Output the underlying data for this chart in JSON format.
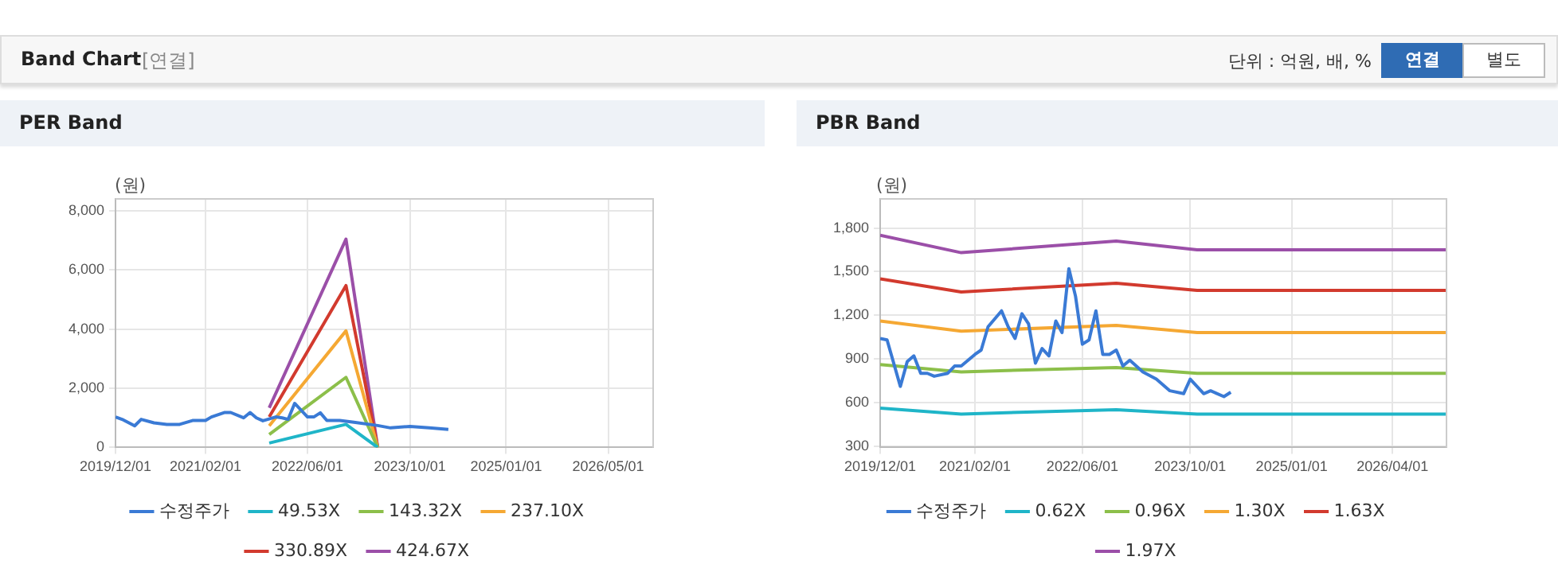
{
  "chart_data": [
    {
      "type": "line",
      "title": "PER Band",
      "ylabel": "(원)",
      "annotations": [
        "Band Chart",
        "[연결]",
        "단위 : 억원, 배, %",
        "연결",
        "별도"
      ],
      "xlim": [
        "2019-12-01",
        "2026-12-01"
      ],
      "xticks": [
        {
          "value": "2019-12-01",
          "label": "2019/12/01"
        },
        {
          "value": "2021-02-01",
          "label": "2021/02/01"
        },
        {
          "value": "2022-06-01",
          "label": "2022/06/01"
        },
        {
          "value": "2023-10-01",
          "label": "2023/10/01"
        },
        {
          "value": "2025-01-01",
          "label": "2025/01/01"
        },
        {
          "value": "2026-05-01",
          "label": "2026/05/01"
        }
      ],
      "ylim": [
        0,
        8400
      ],
      "yticks": [
        0,
        {
          "value": 2000,
          "label": "2,000"
        },
        {
          "value": 4000,
          "label": "4,000"
        },
        {
          "value": 6000,
          "label": "6,000"
        },
        {
          "value": 8000,
          "label": "8,000"
        }
      ],
      "grid": true,
      "legend": "bottom",
      "marker": "none",
      "line_style": "solid",
      "series": [
        {
          "name": "수정주가",
          "color": "#3a7ad5",
          "x": [
            "2019-12",
            "2020-01",
            "2020-03",
            "2020-04",
            "2020-06",
            "2020-08",
            "2020-10",
            "2020-12",
            "2021-02",
            "2021-03",
            "2021-05",
            "2021-06",
            "2021-08",
            "2021-09",
            "2021-10",
            "2021-11",
            "2022-01",
            "2022-02",
            "2022-03",
            "2022-04",
            "2022-06",
            "2022-07",
            "2022-08",
            "2022-09",
            "2022-11",
            "2023-01",
            "2023-05",
            "2023-07",
            "2023-10",
            "2024-01",
            "2024-04"
          ],
          "values": [
            1030,
            950,
            730,
            950,
            830,
            780,
            780,
            910,
            910,
            1030,
            1180,
            1180,
            1000,
            1180,
            1000,
            900,
            1030,
            1000,
            950,
            1490,
            1030,
            1030,
            1170,
            910,
            910,
            860,
            740,
            660,
            710,
            660,
            610
          ]
        },
        {
          "name": "49.53X",
          "color": "#1fb5c8",
          "x": [
            "2021-12",
            "2022-12",
            "2023-05"
          ],
          "values": [
            150,
            780,
            0
          ]
        },
        {
          "name": "143.32X",
          "color": "#8cbf4a",
          "x": [
            "2021-12",
            "2022-12",
            "2023-05"
          ],
          "values": [
            440,
            2370,
            0
          ]
        },
        {
          "name": "237.10X",
          "color": "#f5a833",
          "x": [
            "2021-12",
            "2022-12",
            "2023-05"
          ],
          "values": [
            730,
            3940,
            0
          ]
        },
        {
          "name": "330.89X",
          "color": "#d23a2e",
          "x": [
            "2021-12",
            "2022-12",
            "2023-05"
          ],
          "values": [
            1030,
            5470,
            0
          ]
        },
        {
          "name": "424.67X",
          "color": "#9b4fa8",
          "x": [
            "2021-12",
            "2022-12",
            "2023-05"
          ],
          "values": [
            1340,
            7040,
            0
          ]
        }
      ]
    },
    {
      "type": "line",
      "title": "PBR Band",
      "ylabel": "(원)",
      "xlim": [
        "2019-12-01",
        "2026-12-01"
      ],
      "xticks": [
        {
          "value": "2019-12-01",
          "label": "2019/12/01"
        },
        {
          "value": "2021-02-01",
          "label": "2021/02/01"
        },
        {
          "value": "2022-06-01",
          "label": "2022/06/01"
        },
        {
          "value": "2023-10-01",
          "label": "2023/10/01"
        },
        {
          "value": "2025-01-01",
          "label": "2025/01/01"
        },
        {
          "value": "2026-04-01",
          "label": "2026/04/01"
        }
      ],
      "ylim": [
        290,
        2000
      ],
      "yticks": [
        300,
        600,
        900,
        {
          "value": 1200,
          "label": "1,200"
        },
        {
          "value": 1500,
          "label": "1,500"
        },
        {
          "value": 1800,
          "label": "1,800"
        }
      ],
      "grid": true,
      "legend": "bottom",
      "marker": "none",
      "line_style": "solid",
      "series": [
        {
          "name": "수정주가",
          "color": "#3a7ad5",
          "x": [
            "2019-12",
            "2020-01",
            "2020-03",
            "2020-04",
            "2020-05",
            "2020-06",
            "2020-07",
            "2020-08",
            "2020-10",
            "2020-11",
            "2020-12",
            "2021-02",
            "2021-03",
            "2021-04",
            "2021-06",
            "2021-07",
            "2021-08",
            "2021-09",
            "2021-10",
            "2021-11",
            "2021-12",
            "2022-01",
            "2022-02",
            "2022-03",
            "2022-04",
            "2022-05",
            "2022-06",
            "2022-07",
            "2022-08",
            "2022-09",
            "2022-10",
            "2022-11",
            "2022-12",
            "2023-01",
            "2023-03",
            "2023-05",
            "2023-07",
            "2023-09",
            "2023-10",
            "2023-12",
            "2024-01",
            "2024-03",
            "2024-04"
          ],
          "values": [
            1040,
            1030,
            710,
            880,
            920,
            800,
            800,
            780,
            800,
            850,
            850,
            930,
            960,
            1120,
            1230,
            1120,
            1040,
            1210,
            1140,
            870,
            970,
            920,
            1160,
            1080,
            1520,
            1330,
            1000,
            1030,
            1230,
            930,
            930,
            960,
            850,
            890,
            810,
            760,
            680,
            660,
            760,
            660,
            680,
            640,
            670
          ]
        },
        {
          "name": "0.62X",
          "color": "#1fb5c8",
          "x": [
            "2019-12",
            "2020-12",
            "2022-11",
            "2023-11",
            "2026-12"
          ],
          "values": [
            560,
            520,
            550,
            520,
            520
          ]
        },
        {
          "name": "0.96X",
          "color": "#8cbf4a",
          "x": [
            "2019-12",
            "2020-12",
            "2022-11",
            "2023-11",
            "2026-12"
          ],
          "values": [
            860,
            810,
            840,
            800,
            800
          ]
        },
        {
          "name": "1.30X",
          "color": "#f5a833",
          "x": [
            "2019-12",
            "2020-12",
            "2022-11",
            "2023-11",
            "2026-12"
          ],
          "values": [
            1160,
            1090,
            1130,
            1080,
            1080
          ]
        },
        {
          "name": "1.63X",
          "color": "#d23a2e",
          "x": [
            "2019-12",
            "2020-12",
            "2022-11",
            "2023-11",
            "2026-12"
          ],
          "values": [
            1450,
            1360,
            1420,
            1370,
            1370
          ]
        },
        {
          "name": "1.97X",
          "color": "#9b4fa8",
          "x": [
            "2019-12",
            "2020-12",
            "2022-11",
            "2023-11",
            "2026-12"
          ],
          "values": [
            1750,
            1630,
            1710,
            1650,
            1650
          ]
        }
      ]
    }
  ]
}
